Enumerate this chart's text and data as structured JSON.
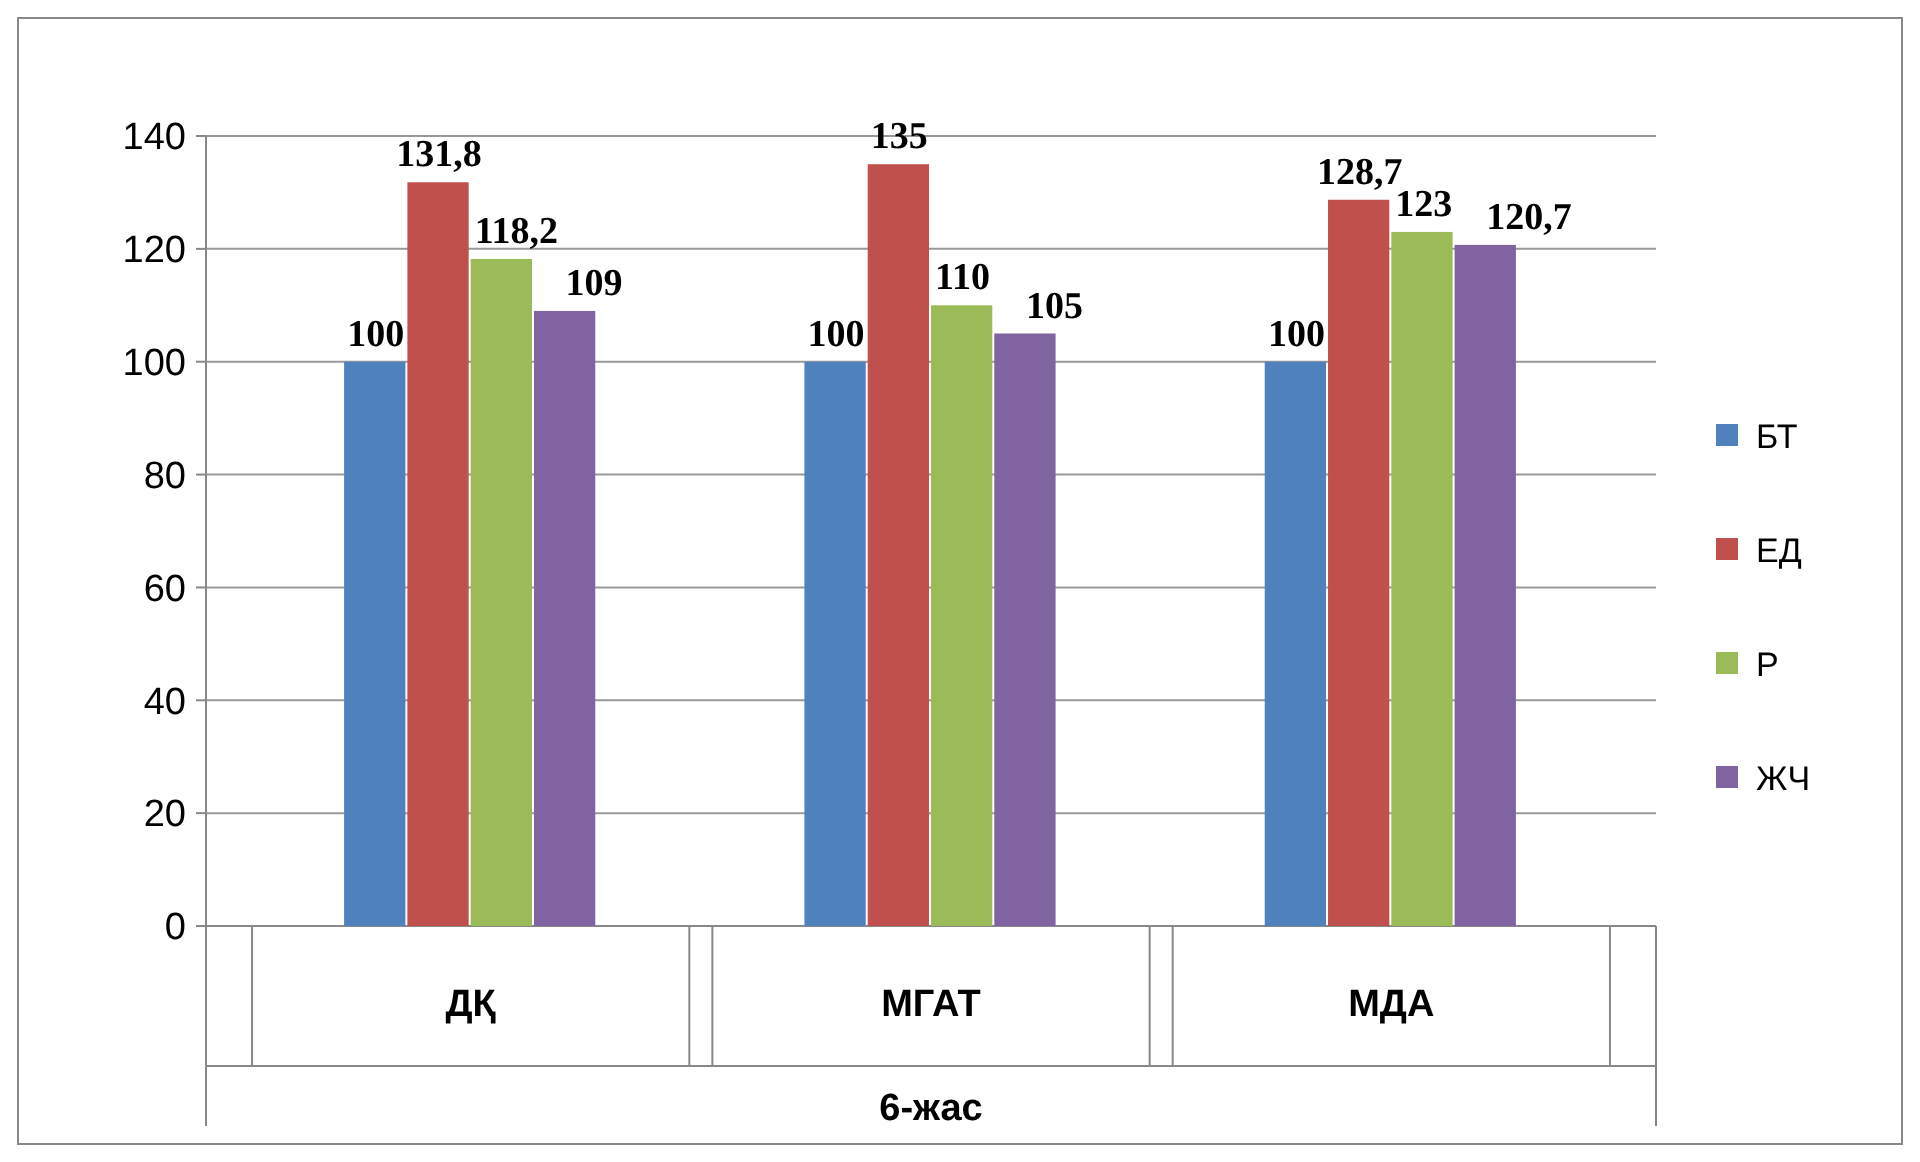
{
  "chart_data": {
    "type": "bar",
    "xlabel": "6-жас",
    "categories": [
      "ДҚ",
      "МГАТ",
      "МДА"
    ],
    "series": [
      {
        "name": "БТ",
        "color": "#4f81bd",
        "values": [
          100,
          100,
          100
        ],
        "value_labels": [
          "100",
          "100",
          "100"
        ]
      },
      {
        "name": "ЕД",
        "color": "#c0504d",
        "values": [
          131.8,
          135,
          128.7
        ],
        "value_labels": [
          "131,8",
          "135",
          "128,7"
        ]
      },
      {
        "name": "Р",
        "color": "#9bbb59",
        "values": [
          118.2,
          110,
          123
        ],
        "value_labels": [
          "118,2",
          "110",
          "123"
        ]
      },
      {
        "name": "ЖЧ",
        "color": "#8064a2",
        "values": [
          109,
          105,
          120.7
        ],
        "value_labels": [
          "109",
          "105",
          "120,7"
        ]
      }
    ],
    "ylim": [
      0,
      140
    ],
    "yticks": [
      0,
      20,
      40,
      60,
      80,
      100,
      120,
      140
    ],
    "grid": "y",
    "legend": "right"
  }
}
